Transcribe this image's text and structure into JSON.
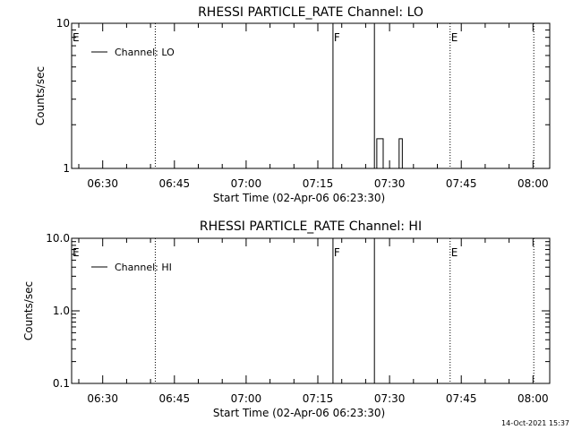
{
  "chart_data": [
    {
      "type": "line",
      "title": "RHESSI PARTICLE_RATE Channel: LO",
      "xlabel": "Start Time (02-Apr-06 06:23:30)",
      "ylabel": "Counts/sec",
      "yscale": "log",
      "ylim": [
        1,
        10
      ],
      "y_ticks": [
        1,
        10
      ],
      "y_tick_labels": [
        "1",
        "10"
      ],
      "xlim": [
        "06:23:30",
        "08:03:30"
      ],
      "x_ticks": [
        "06:30",
        "06:45",
        "07:00",
        "07:15",
        "07:30",
        "07:45",
        "08:00"
      ],
      "grid": false,
      "legend_position": "top-left",
      "series": [
        {
          "name": "Channel: LO",
          "x": [
            "07:27:00",
            "07:27:20",
            "07:27:40",
            "07:28:00",
            "07:28:20",
            "07:28:40",
            "07:29:00",
            "07:31:40",
            "07:32:00",
            "07:32:20",
            "07:32:40"
          ],
          "values": [
            1,
            1.6,
            1.6,
            1.6,
            1.6,
            1,
            1,
            1,
            1.6,
            1.6,
            1
          ]
        }
      ],
      "markers": [
        {
          "time": "06:41:00",
          "label": "",
          "style": "dotted"
        },
        {
          "time": "07:18:10",
          "label": "F",
          "style": "solid"
        },
        {
          "time": "07:26:50",
          "label": "",
          "style": "solid"
        },
        {
          "time": "07:42:40",
          "label": "E",
          "style": "dotted"
        },
        {
          "time": "08:00:10",
          "label": "",
          "style": "dotted"
        }
      ],
      "left_edge_label": "E"
    },
    {
      "type": "line",
      "title": "RHESSI PARTICLE_RATE Channel: HI",
      "xlabel": "Start Time (02-Apr-06 06:23:30)",
      "ylabel": "Counts/sec",
      "yscale": "log",
      "ylim": [
        0.1,
        10
      ],
      "y_ticks": [
        0.1,
        1,
        10
      ],
      "y_tick_labels": [
        "0.1",
        "1.0",
        "10.0"
      ],
      "xlim": [
        "06:23:30",
        "08:03:30"
      ],
      "x_ticks": [
        "06:30",
        "06:45",
        "07:00",
        "07:15",
        "07:30",
        "07:45",
        "08:00"
      ],
      "grid": false,
      "legend_position": "top-left",
      "series": [
        {
          "name": "Channel: HI",
          "x": [],
          "values": []
        }
      ],
      "markers": [
        {
          "time": "06:41:00",
          "label": "",
          "style": "dotted"
        },
        {
          "time": "07:18:10",
          "label": "F",
          "style": "solid"
        },
        {
          "time": "07:26:50",
          "label": "",
          "style": "solid"
        },
        {
          "time": "07:42:40",
          "label": "E",
          "style": "dotted"
        },
        {
          "time": "08:00:10",
          "label": "",
          "style": "dotted"
        }
      ],
      "left_edge_label": "E"
    }
  ],
  "footer": {
    "timestamp": "14-Oct-2021 15:37"
  },
  "colors": {
    "background": "#ffffff",
    "foreground": "#000000"
  }
}
